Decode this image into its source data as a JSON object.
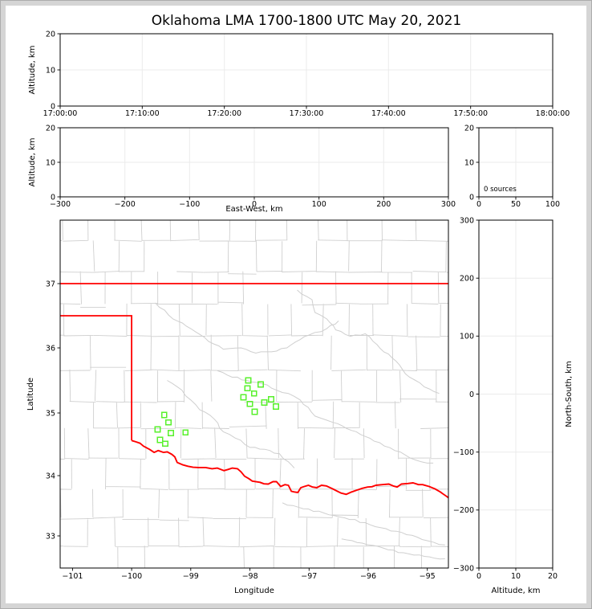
{
  "title": "Oklahoma LMA 1700-1800 UTC May 20, 2021",
  "colors": {
    "background": "#ffffff",
    "figure_border": "#d5d5d5",
    "frame": "#000000",
    "grid": "#ebebeb",
    "county": "#cfcfcf",
    "state_border": "#ff0000",
    "source_marker": "#58f02c",
    "text": "#000000"
  },
  "chart_data": [
    {
      "id": "time_height",
      "type": "scatter",
      "title": "",
      "xlabel": "",
      "ylabel": "Altitude, km",
      "xlim": [
        0,
        3600
      ],
      "xticks": [
        0,
        600,
        1200,
        1800,
        2400,
        3000,
        3600
      ],
      "xtick_labels": [
        "17:00:00",
        "17:10:00",
        "17:20:00",
        "17:30:00",
        "17:40:00",
        "17:50:00",
        "18:00:00"
      ],
      "ylim": [
        0,
        20
      ],
      "yticks": [
        0,
        10,
        20
      ],
      "ytick_labels": [
        "0",
        "10",
        "20"
      ],
      "grid": true,
      "points": []
    },
    {
      "id": "ew_height",
      "type": "scatter",
      "xlabel": "East-West, km",
      "ylabel": "Altitude, km",
      "xlim": [
        -300,
        300
      ],
      "xticks": [
        -300,
        -200,
        -100,
        0,
        100,
        200,
        300
      ],
      "xtick_labels": [
        "−300",
        "−200",
        "−100",
        "0",
        "100",
        "200",
        "300"
      ],
      "ylim": [
        0,
        20
      ],
      "yticks": [
        0,
        10,
        20
      ],
      "ytick_labels": [
        "0",
        "10",
        "20"
      ],
      "grid": true,
      "points": []
    },
    {
      "id": "alt_histogram",
      "type": "histogram",
      "xlabel": "",
      "ylabel": "",
      "xlim": [
        0,
        100
      ],
      "xticks": [
        0,
        50,
        100
      ],
      "xtick_labels": [
        "0",
        "50",
        "100"
      ],
      "ylim": [
        0,
        20
      ],
      "yticks": [
        0,
        10,
        20
      ],
      "ytick_labels": [
        "0",
        "10",
        "20"
      ],
      "annotation": "0 sources",
      "grid": true,
      "values": []
    },
    {
      "id": "plan_view",
      "type": "map",
      "xlabel": "Longitude",
      "ylabel": "Latitude",
      "xlim": [
        -101.21,
        -94.64
      ],
      "xticks": [
        -101,
        -100,
        -99,
        -98,
        -97,
        -96,
        -95
      ],
      "xtick_labels": [
        "−101",
        "−100",
        "−99",
        "−98",
        "−97",
        "−96",
        "−95"
      ],
      "ylim": [
        32.47,
        37.99
      ],
      "yticks": [
        33,
        34,
        35,
        36,
        37
      ],
      "ytick_labels": [
        "33",
        "34",
        "35",
        "36",
        "37"
      ],
      "grid": false,
      "marker": "open-square",
      "marker_color": "#58f02c",
      "sources_lonlat": [
        [
          -98.03,
          35.5
        ],
        [
          -97.82,
          35.44
        ],
        [
          -98.04,
          35.38
        ],
        [
          -97.93,
          35.3
        ],
        [
          -98.11,
          35.24
        ],
        [
          -97.64,
          35.21
        ],
        [
          -97.76,
          35.16
        ],
        [
          -98.0,
          35.14
        ],
        [
          -97.56,
          35.1
        ],
        [
          -97.92,
          35.02
        ],
        [
          -99.45,
          34.97
        ],
        [
          -99.38,
          34.85
        ],
        [
          -99.56,
          34.74
        ],
        [
          -99.34,
          34.68
        ],
        [
          -99.09,
          34.69
        ],
        [
          -99.52,
          34.57
        ],
        [
          -99.43,
          34.51
        ]
      ],
      "state_border": {
        "kansas_line": [
          [
            -101.21,
            37.0
          ],
          [
            -94.64,
            37.0
          ]
        ],
        "panhandle": [
          [
            -101.21,
            36.5
          ],
          [
            -100.0,
            36.5
          ],
          [
            -100.0,
            34.56
          ]
        ],
        "red_river": [
          [
            -100.0,
            34.56
          ],
          [
            -99.93,
            34.54
          ],
          [
            -99.8,
            34.47
          ],
          [
            -99.7,
            34.42
          ],
          [
            -99.62,
            34.37
          ],
          [
            -99.55,
            34.4
          ],
          [
            -99.46,
            34.37
          ],
          [
            -99.4,
            34.38
          ],
          [
            -99.32,
            34.34
          ],
          [
            -99.27,
            34.3
          ],
          [
            -99.23,
            34.21
          ],
          [
            -99.13,
            34.17
          ],
          [
            -99.05,
            34.15
          ],
          [
            -98.87,
            34.13
          ],
          [
            -98.75,
            34.13
          ],
          [
            -98.64,
            34.11
          ],
          [
            -98.55,
            34.12
          ],
          [
            -98.44,
            34.08
          ],
          [
            -98.3,
            34.12
          ],
          [
            -98.21,
            34.11
          ],
          [
            -98.15,
            34.06
          ],
          [
            -98.09,
            33.99
          ],
          [
            -98.02,
            33.95
          ],
          [
            -97.96,
            33.91
          ],
          [
            -97.83,
            33.89
          ],
          [
            -97.69,
            33.86
          ],
          [
            -97.61,
            33.9
          ],
          [
            -97.55,
            33.9
          ],
          [
            -97.48,
            33.82
          ],
          [
            -97.41,
            33.85
          ],
          [
            -97.35,
            33.84
          ],
          [
            -97.3,
            33.74
          ],
          [
            -97.25,
            33.73
          ],
          [
            -97.19,
            33.72
          ],
          [
            -97.14,
            33.8
          ],
          [
            -97.08,
            33.82
          ],
          [
            -97.01,
            33.84
          ],
          [
            -96.94,
            33.81
          ],
          [
            -96.87,
            33.8
          ],
          [
            -96.79,
            33.84
          ],
          [
            -96.71,
            33.83
          ],
          [
            -96.6,
            33.78
          ],
          [
            -96.52,
            33.74
          ],
          [
            -96.46,
            33.71
          ],
          [
            -96.37,
            33.69
          ],
          [
            -96.28,
            33.73
          ],
          [
            -96.19,
            33.76
          ],
          [
            -96.1,
            33.79
          ],
          [
            -96.01,
            33.81
          ],
          [
            -95.87,
            33.84
          ],
          [
            -95.76,
            33.85
          ],
          [
            -95.65,
            33.86
          ],
          [
            -95.58,
            33.83
          ],
          [
            -95.51,
            33.81
          ],
          [
            -95.44,
            33.86
          ],
          [
            -95.33,
            33.87
          ],
          [
            -95.24,
            33.88
          ],
          [
            -95.15,
            33.85
          ],
          [
            -95.08,
            33.85
          ],
          [
            -94.97,
            33.82
          ],
          [
            -94.87,
            33.78
          ],
          [
            -94.78,
            33.73
          ],
          [
            -94.74,
            33.7
          ],
          [
            -94.68,
            33.66
          ],
          [
            -94.64,
            33.63
          ]
        ]
      },
      "rivers_lonlat": [
        [
          [
            -99.6,
            36.7
          ],
          [
            -99.3,
            36.45
          ],
          [
            -99.0,
            36.3
          ],
          [
            -98.7,
            36.1
          ],
          [
            -98.45,
            35.98
          ],
          [
            -98.15,
            36.0
          ],
          [
            -97.9,
            35.92
          ],
          [
            -97.55,
            35.95
          ],
          [
            -97.3,
            36.05
          ],
          [
            -97.0,
            36.2
          ],
          [
            -96.7,
            36.3
          ],
          [
            -96.5,
            36.42
          ]
        ],
        [
          [
            -97.2,
            36.9
          ],
          [
            -96.95,
            36.75
          ],
          [
            -96.9,
            36.55
          ],
          [
            -96.7,
            36.45
          ],
          [
            -96.55,
            36.28
          ],
          [
            -96.3,
            36.18
          ],
          [
            -96.05,
            36.22
          ],
          [
            -95.85,
            36.05
          ],
          [
            -95.6,
            35.85
          ],
          [
            -95.3,
            35.55
          ],
          [
            -95.05,
            35.4
          ],
          [
            -94.8,
            35.3
          ]
        ],
        [
          [
            -98.55,
            35.65
          ],
          [
            -98.3,
            35.55
          ],
          [
            -98.05,
            35.5
          ],
          [
            -97.8,
            35.45
          ],
          [
            -97.55,
            35.35
          ],
          [
            -97.35,
            35.3
          ],
          [
            -97.15,
            35.2
          ],
          [
            -96.9,
            34.95
          ],
          [
            -96.6,
            34.85
          ],
          [
            -96.2,
            34.7
          ],
          [
            -95.9,
            34.55
          ],
          [
            -95.55,
            34.4
          ],
          [
            -95.2,
            34.25
          ],
          [
            -94.9,
            34.2
          ]
        ],
        [
          [
            -99.4,
            35.5
          ],
          [
            -99.15,
            35.35
          ],
          [
            -99.0,
            35.2
          ],
          [
            -98.85,
            35.05
          ],
          [
            -98.6,
            34.9
          ],
          [
            -98.45,
            34.7
          ],
          [
            -98.25,
            34.6
          ],
          [
            -98.0,
            34.45
          ],
          [
            -97.75,
            34.42
          ],
          [
            -97.5,
            34.35
          ],
          [
            -97.35,
            34.22
          ],
          [
            -97.25,
            34.12
          ]
        ],
        [
          [
            -97.45,
            33.55
          ],
          [
            -97.1,
            33.45
          ],
          [
            -96.75,
            33.38
          ],
          [
            -96.4,
            33.3
          ],
          [
            -96.05,
            33.22
          ],
          [
            -95.7,
            33.12
          ],
          [
            -95.35,
            33.02
          ],
          [
            -95.0,
            32.92
          ],
          [
            -94.7,
            32.85
          ]
        ],
        [
          [
            -96.45,
            32.95
          ],
          [
            -96.1,
            32.88
          ],
          [
            -95.75,
            32.8
          ],
          [
            -95.4,
            32.72
          ],
          [
            -95.05,
            32.66
          ],
          [
            -94.7,
            32.62
          ]
        ]
      ],
      "counties": {
        "seed": 11,
        "style": "irregular-grid"
      }
    },
    {
      "id": "ns_height",
      "type": "scatter",
      "xlabel": "Altitude, km",
      "ylabel": "North-South, km",
      "xlim": [
        0,
        20
      ],
      "xticks": [
        0,
        10,
        20
      ],
      "xtick_labels": [
        "0",
        "10",
        "20"
      ],
      "ylim": [
        -300,
        300
      ],
      "yticks": [
        -300,
        -200,
        -100,
        0,
        100,
        200,
        300
      ],
      "ytick_labels": [
        "−300",
        "−200",
        "−100",
        "0",
        "100",
        "200",
        "300"
      ],
      "grid": true,
      "points": []
    }
  ]
}
